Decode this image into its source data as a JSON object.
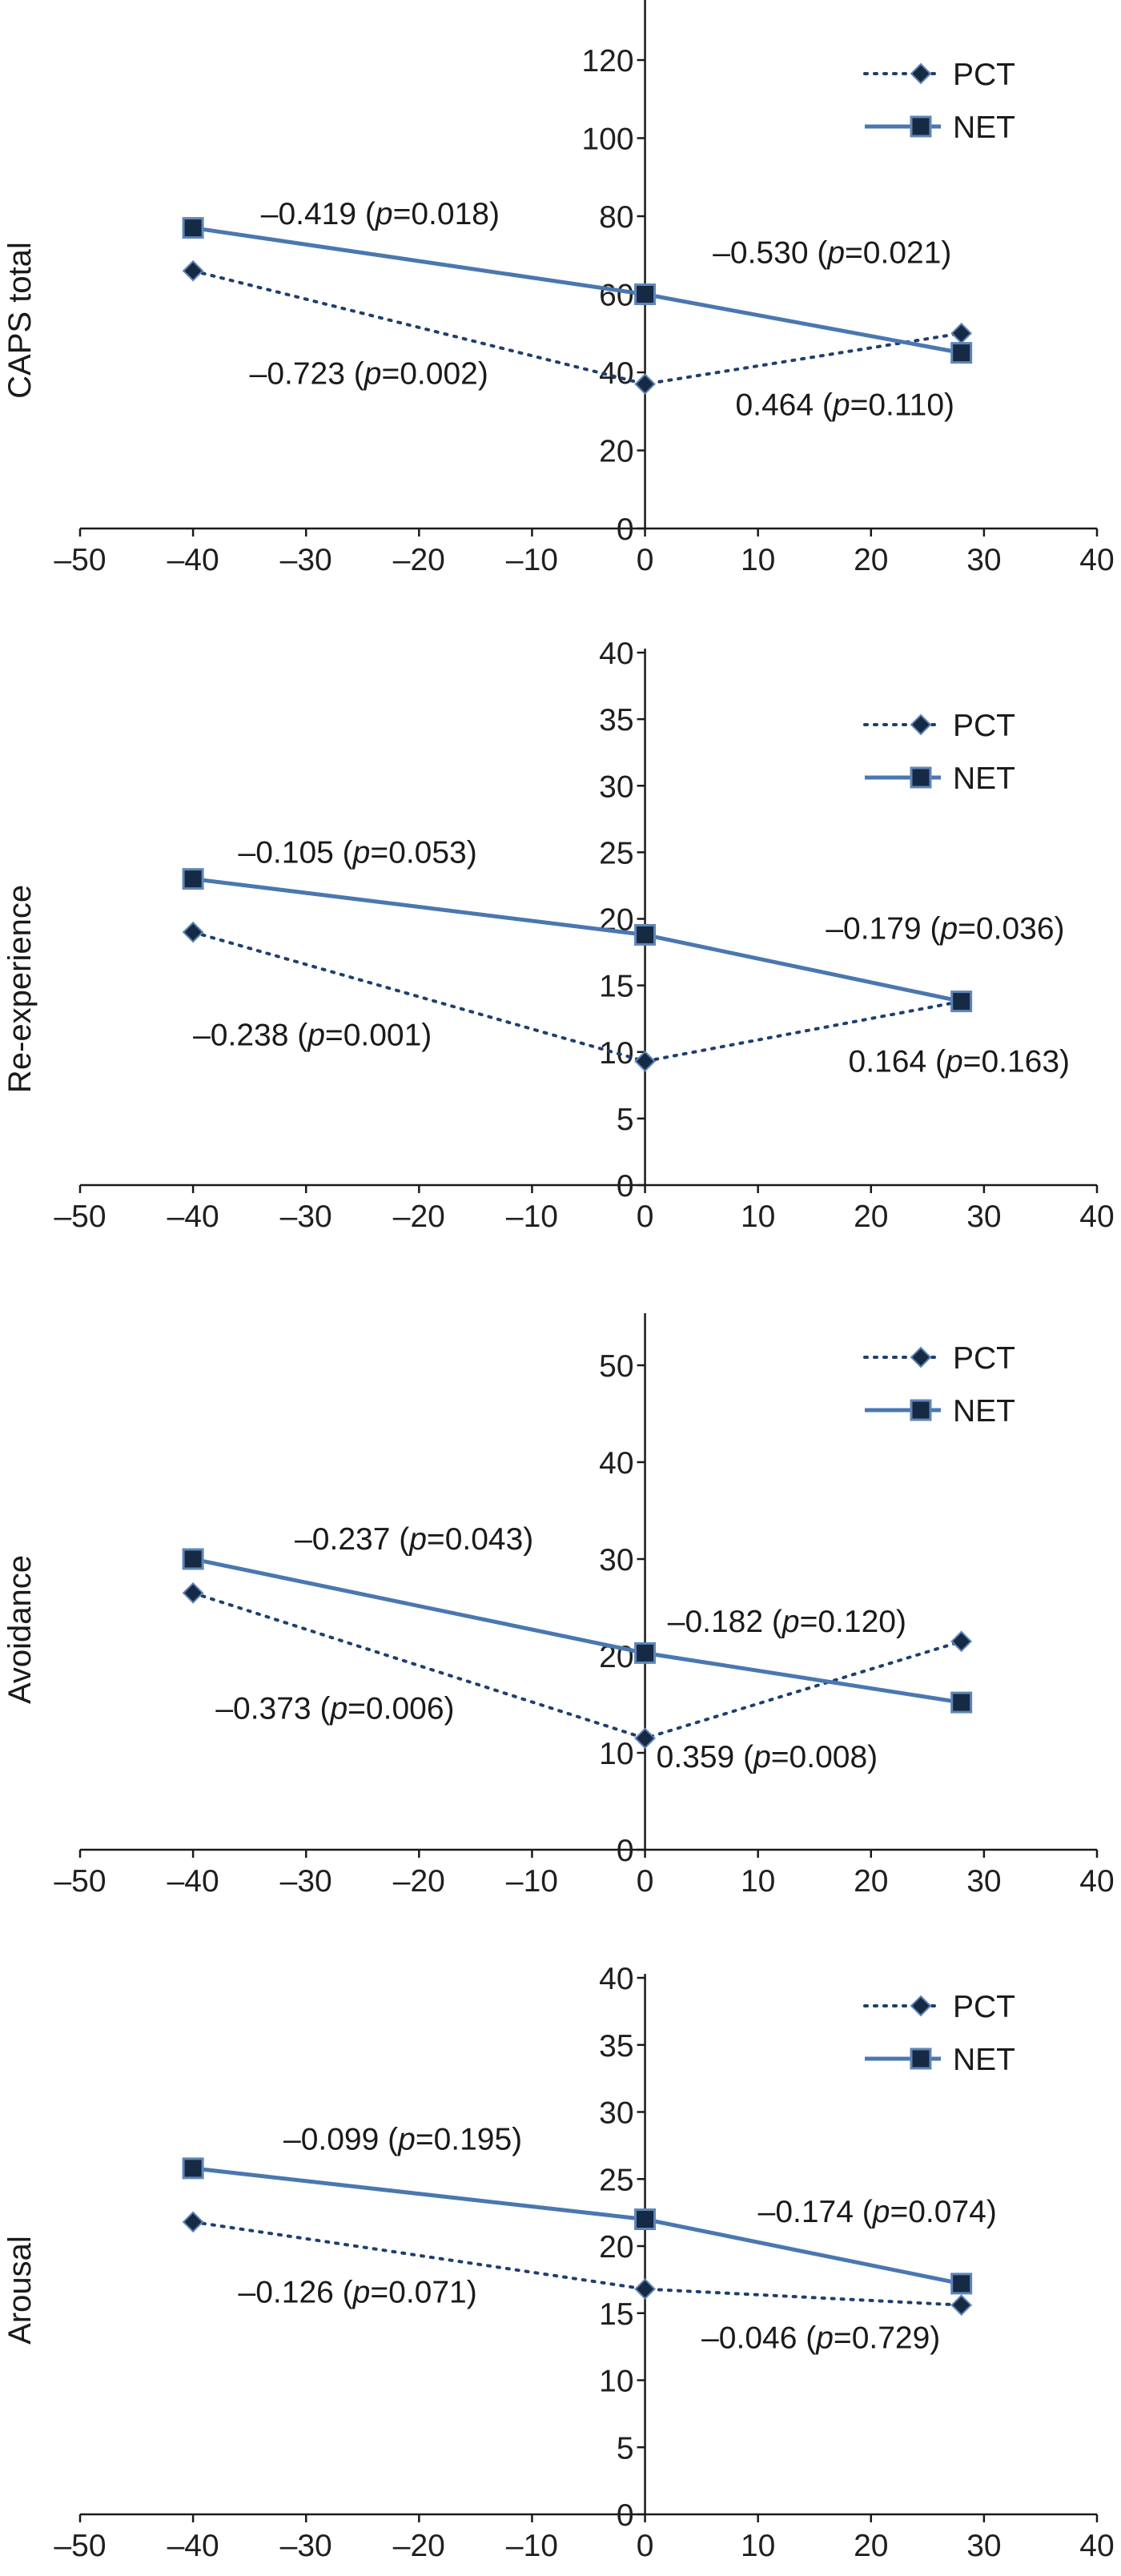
{
  "chart_data": [
    {
      "type": "line",
      "ylabel": "CAPS total",
      "xlim": [
        -50,
        40
      ],
      "xticks": [
        -50,
        -40,
        -30,
        -20,
        -10,
        0,
        10,
        20,
        30,
        40
      ],
      "ylim": [
        0,
        135
      ],
      "yticks": [
        0,
        20,
        40,
        60,
        80,
        100,
        120
      ],
      "series": [
        {
          "name": "PCT",
          "x": [
            -40,
            0,
            28
          ],
          "y": [
            66,
            37,
            50
          ]
        },
        {
          "name": "NET",
          "x": [
            -40,
            0,
            28
          ],
          "y": [
            77,
            60,
            45
          ]
        }
      ],
      "annotations": [
        {
          "text": "–0.419 (p=0.018)",
          "x": -34,
          "y": 78
        },
        {
          "text": "–0.530 (p=0.021)",
          "x": 6,
          "y": 68
        },
        {
          "text": "–0.723 (p=0.002)",
          "x": -35,
          "y": 37
        },
        {
          "text": "0.464 (p=0.110)",
          "x": 8,
          "y": 29
        }
      ]
    },
    {
      "type": "line",
      "ylabel": "Re-experience",
      "xlim": [
        -50,
        40
      ],
      "xticks": [
        -50,
        -40,
        -30,
        -20,
        -10,
        0,
        10,
        20,
        30,
        40
      ],
      "ylim": [
        0,
        40
      ],
      "yticks": [
        0,
        5,
        10,
        15,
        20,
        25,
        30,
        35,
        40
      ],
      "series": [
        {
          "name": "PCT",
          "x": [
            -40,
            0,
            28
          ],
          "y": [
            19,
            9.3,
            13.8
          ]
        },
        {
          "name": "NET",
          "x": [
            -40,
            0,
            28
          ],
          "y": [
            23,
            18.8,
            13.8
          ]
        }
      ],
      "annotations": [
        {
          "text": "–0.105 (p=0.053)",
          "x": -36,
          "y": 24.2
        },
        {
          "text": "–0.179 (p=0.036)",
          "x": 16,
          "y": 18.5
        },
        {
          "text": "–0.238 (p=0.001)",
          "x": -40,
          "y": 10.5
        },
        {
          "text": "0.164 (p=0.163)",
          "x": 18,
          "y": 8.5
        }
      ]
    },
    {
      "type": "line",
      "ylabel": "Avoidance",
      "xlim": [
        -50,
        40
      ],
      "xticks": [
        -50,
        -40,
        -30,
        -20,
        -10,
        0,
        10,
        20,
        30,
        40
      ],
      "ylim": [
        0,
        55
      ],
      "yticks": [
        0,
        10,
        20,
        30,
        40,
        50
      ],
      "series": [
        {
          "name": "PCT",
          "x": [
            -40,
            0,
            28
          ],
          "y": [
            26.5,
            11.5,
            21.5
          ]
        },
        {
          "name": "NET",
          "x": [
            -40,
            0,
            28
          ],
          "y": [
            30,
            20.3,
            15.2
          ]
        }
      ],
      "annotations": [
        {
          "text": "–0.237 (p=0.043)",
          "x": -31,
          "y": 31
        },
        {
          "text": "–0.182 (p=0.120)",
          "x": 2,
          "y": 22.5
        },
        {
          "text": "–0.373 (p=0.006)",
          "x": -38,
          "y": 13.5
        },
        {
          "text": "0.359 (p=0.008)",
          "x": 1,
          "y": 8.5
        }
      ]
    },
    {
      "type": "line",
      "ylabel": "Arousal",
      "xlim": [
        -50,
        40
      ],
      "xticks": [
        -50,
        -40,
        -30,
        -20,
        -10,
        0,
        10,
        20,
        30,
        40
      ],
      "ylim": [
        0,
        40
      ],
      "yticks": [
        0,
        5,
        10,
        15,
        20,
        25,
        30,
        35,
        40
      ],
      "series": [
        {
          "name": "PCT",
          "x": [
            -40,
            0,
            28
          ],
          "y": [
            21.8,
            16.8,
            15.6
          ]
        },
        {
          "name": "NET",
          "x": [
            -40,
            0,
            28
          ],
          "y": [
            25.8,
            22.0,
            17.2
          ]
        }
      ],
      "annotations": [
        {
          "text": "–0.099 (p=0.195)",
          "x": -32,
          "y": 27.2
        },
        {
          "text": "–0.174 (p=0.074)",
          "x": 10,
          "y": 21.8
        },
        {
          "text": "–0.126 (p=0.071)",
          "x": -36,
          "y": 15.8
        },
        {
          "text": "–0.046 (p=0.729)",
          "x": 5,
          "y": 12.4
        }
      ]
    }
  ],
  "legend": {
    "pct": "PCT",
    "net": "NET"
  },
  "colors": {
    "pct_line": "#1e3f6e",
    "net_line": "#4a77b0",
    "marker_fill": "#172a44",
    "marker_stroke": "#5f86b8"
  }
}
